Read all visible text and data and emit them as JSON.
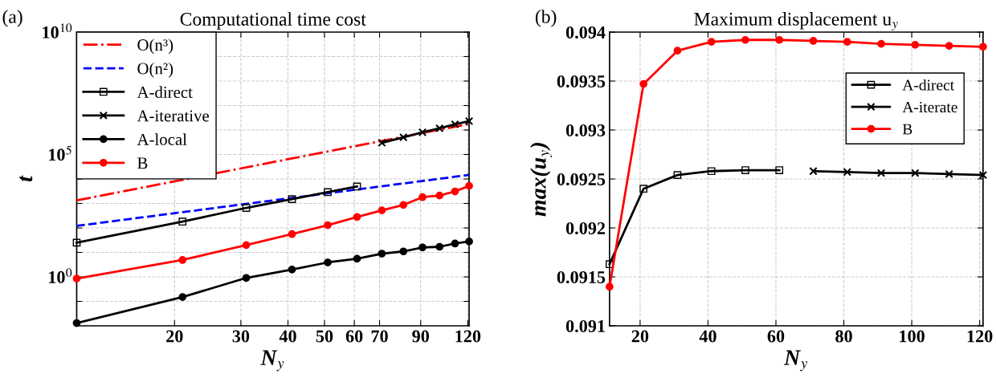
{
  "chart_data": [
    {
      "type": "line",
      "title": "Computational time cost",
      "xlabel": "N$_{y}$",
      "ylabel": "t",
      "log": "xy",
      "grid": true,
      "legend": "top left",
      "xlim": [
        11,
        121
      ],
      "xticks": [
        20,
        30,
        40,
        50,
        60,
        70,
        90,
        120
      ],
      "ylim": [
        0.01,
        10000000000
      ],
      "yticks": [
        {
          "value": 0.1,
          "label": null
        },
        {
          "value": 1,
          "label": "10$^{0}$"
        },
        {
          "value": 10,
          "label": null
        },
        {
          "value": 100,
          "label": null
        },
        {
          "value": 1000,
          "label": null
        },
        {
          "value": 10000,
          "label": null
        },
        {
          "value": 100000,
          "label": "10$^{5}$"
        },
        {
          "value": 1000000,
          "label": null
        },
        {
          "value": 10000000,
          "label": null
        },
        {
          "value": 100000000,
          "label": null
        },
        {
          "value": 1000000000,
          "label": null
        },
        {
          "value": 10000000000,
          "label": "10$^{10}$"
        }
      ],
      "annotations": [
        "(a)"
      ],
      "series": [
        {
          "name": "O(n³)",
          "color": "#ff0000",
          "line_style": "dashdot",
          "marker": "none",
          "x": [
            11,
            121
          ],
          "values": [
            1331,
            1771561
          ]
        },
        {
          "name": "O(n²)",
          "color": "#0000ff",
          "line_style": "dashed",
          "marker": "none",
          "x": [
            11,
            121
          ],
          "values": [
            121,
            14641
          ]
        },
        {
          "name": "A-direct",
          "color": "#000000",
          "marker": "square",
          "x": [
            11,
            21,
            31,
            41,
            51,
            61
          ],
          "values": [
            25,
            180,
            660,
            1500,
            2900,
            4900
          ]
        },
        {
          "name": "A-iterative",
          "color": "#000000",
          "marker": "cross",
          "x": [
            71,
            81,
            91,
            101,
            111,
            121
          ],
          "values": [
            300000,
            500000,
            810000,
            1170000,
            1700000,
            2300000
          ]
        },
        {
          "name": "A-local",
          "color": "#000000",
          "marker": "circle",
          "x": [
            11,
            21,
            31,
            41,
            51,
            61,
            71,
            81,
            91,
            101,
            111,
            121
          ],
          "values": [
            0.013,
            0.15,
            0.91,
            2.0,
            3.9,
            5.5,
            8.9,
            11,
            16,
            17,
            23,
            28
          ]
        },
        {
          "name": "B",
          "color": "#ff0000",
          "marker": "circle",
          "x": [
            11,
            21,
            31,
            41,
            51,
            61,
            71,
            81,
            91,
            101,
            111,
            121
          ],
          "values": [
            0.85,
            4.9,
            20,
            56,
            130,
            280,
            520,
            870,
            1800,
            2100,
            3100,
            5200
          ]
        }
      ]
    },
    {
      "type": "line",
      "title": "Maximum displacement u$_{y}$",
      "xlabel": "N$_{y}$",
      "ylabel": "max(u$_{y}$)",
      "grid": true,
      "legend": "right",
      "xlim": [
        11,
        121
      ],
      "xticks": [
        20,
        40,
        60,
        80,
        100,
        120
      ],
      "ylim": [
        0.091,
        0.094
      ],
      "yticks": [
        0.091,
        0.0915,
        0.092,
        0.0925,
        0.093,
        0.0935,
        0.094
      ],
      "annotations": [
        "(b)"
      ],
      "series": [
        {
          "name": "A-direct",
          "color": "#000000",
          "marker": "square",
          "x": [
            11,
            21,
            31,
            41,
            51,
            61
          ],
          "values": [
            0.09163,
            0.0924,
            0.09254,
            0.09258,
            0.09259,
            0.09259
          ]
        },
        {
          "name": "A-iterate",
          "color": "#000000",
          "marker": "cross",
          "x": [
            71,
            81,
            91,
            101,
            111,
            121
          ],
          "values": [
            0.09258,
            0.09257,
            0.09256,
            0.09256,
            0.09255,
            0.09254
          ]
        },
        {
          "name": "B",
          "color": "#ff0000",
          "marker": "circle",
          "x": [
            11,
            21,
            31,
            41,
            51,
            61,
            71,
            81,
            91,
            101,
            111,
            121
          ],
          "values": [
            0.0914,
            0.09347,
            0.09381,
            0.0939,
            0.09392,
            0.09392,
            0.09391,
            0.0939,
            0.09388,
            0.09387,
            0.09386,
            0.09385
          ]
        }
      ]
    }
  ]
}
